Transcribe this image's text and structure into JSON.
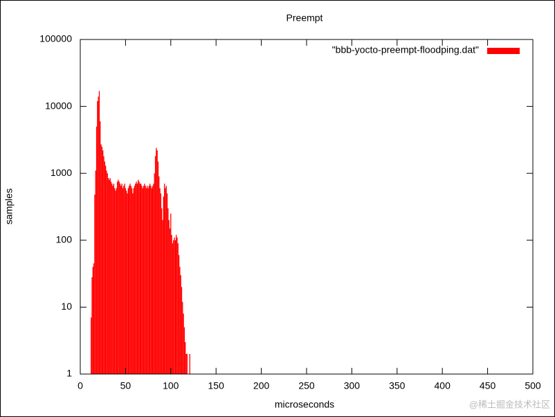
{
  "chart_data": {
    "type": "bar",
    "title": "Preempt",
    "xlabel": "microseconds",
    "ylabel": "samples",
    "x": [
      12,
      13,
      14,
      15,
      16,
      17,
      18,
      19,
      20,
      21,
      22,
      23,
      24,
      25,
      26,
      27,
      28,
      29,
      30,
      31,
      32,
      33,
      34,
      35,
      36,
      37,
      38,
      39,
      40,
      41,
      42,
      43,
      44,
      45,
      46,
      47,
      48,
      49,
      50,
      51,
      52,
      53,
      54,
      55,
      56,
      57,
      58,
      59,
      60,
      61,
      62,
      63,
      64,
      65,
      66,
      67,
      68,
      69,
      70,
      71,
      72,
      73,
      74,
      75,
      76,
      77,
      78,
      79,
      80,
      81,
      82,
      83,
      84,
      85,
      86,
      87,
      88,
      89,
      90,
      91,
      92,
      93,
      94,
      95,
      96,
      97,
      98,
      99,
      100,
      101,
      102,
      103,
      104,
      105,
      106,
      107,
      108,
      109,
      110,
      111,
      112,
      113,
      114,
      115,
      116,
      117,
      118,
      121
    ],
    "series": [
      {
        "name": "\"bbb-yocto-preempt-floodping.dat\"",
        "color": "#ff0000",
        "values": [
          7,
          28,
          40,
          45,
          480,
          1100,
          5000,
          12000,
          14000,
          17000,
          6000,
          2700,
          2500,
          2200,
          1800,
          1500,
          1300,
          1100,
          1000,
          850,
          800,
          850,
          750,
          700,
          650,
          700,
          600,
          550,
          600,
          750,
          800,
          750,
          700,
          650,
          700,
          600,
          650,
          700,
          600,
          550,
          500,
          600,
          650,
          700,
          650,
          600,
          500,
          600,
          650,
          700,
          750,
          700,
          800,
          750,
          700,
          700,
          650,
          600,
          650,
          700,
          650,
          600,
          650,
          600,
          650,
          700,
          650,
          600,
          650,
          700,
          1000,
          1800,
          2400,
          2200,
          1500,
          900,
          600,
          500,
          300,
          200,
          450,
          700,
          600,
          650,
          500,
          300,
          200,
          150,
          250,
          120,
          90,
          100,
          110,
          100,
          120,
          110,
          90,
          60,
          40,
          30,
          20,
          12,
          8,
          5,
          3,
          2,
          2,
          2
        ]
      }
    ],
    "xlim": [
      0,
      500
    ],
    "xticks": [
      0,
      50,
      100,
      150,
      200,
      250,
      300,
      350,
      400,
      450,
      500
    ],
    "ylim": [
      1,
      100000
    ],
    "yticks": [
      1,
      10,
      100,
      1000,
      10000,
      100000
    ],
    "log_y": true,
    "legend": "top-right",
    "watermark": "@稀土掘金技术社区"
  }
}
